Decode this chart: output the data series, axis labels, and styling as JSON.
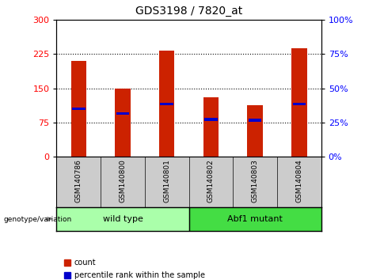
{
  "title": "GDS3198 / 7820_at",
  "samples": [
    "GSM140786",
    "GSM140800",
    "GSM140801",
    "GSM140802",
    "GSM140803",
    "GSM140804"
  ],
  "counts": [
    210,
    150,
    232,
    130,
    112,
    238
  ],
  "percentile_ranks": [
    105,
    95,
    115,
    82,
    80,
    115
  ],
  "bar_color": "#CC2200",
  "percentile_color": "#0000CC",
  "ylim_left": [
    0,
    300
  ],
  "ylim_right": [
    0,
    100
  ],
  "yticks_left": [
    0,
    75,
    150,
    225,
    300
  ],
  "yticks_right": [
    0,
    25,
    50,
    75,
    100
  ],
  "bg_color": "#FFFFFF",
  "tick_label_bg": "#CCCCCC",
  "wt_color": "#AAFFAA",
  "mut_color": "#44DD44",
  "group_label": "genotype/variation",
  "wt_label": "wild type",
  "mut_label": "Abf1 mutant",
  "legend_count": "count",
  "legend_percentile": "percentile rank within the sample",
  "bar_width": 0.35,
  "grid_yticks": [
    75,
    150,
    225
  ]
}
